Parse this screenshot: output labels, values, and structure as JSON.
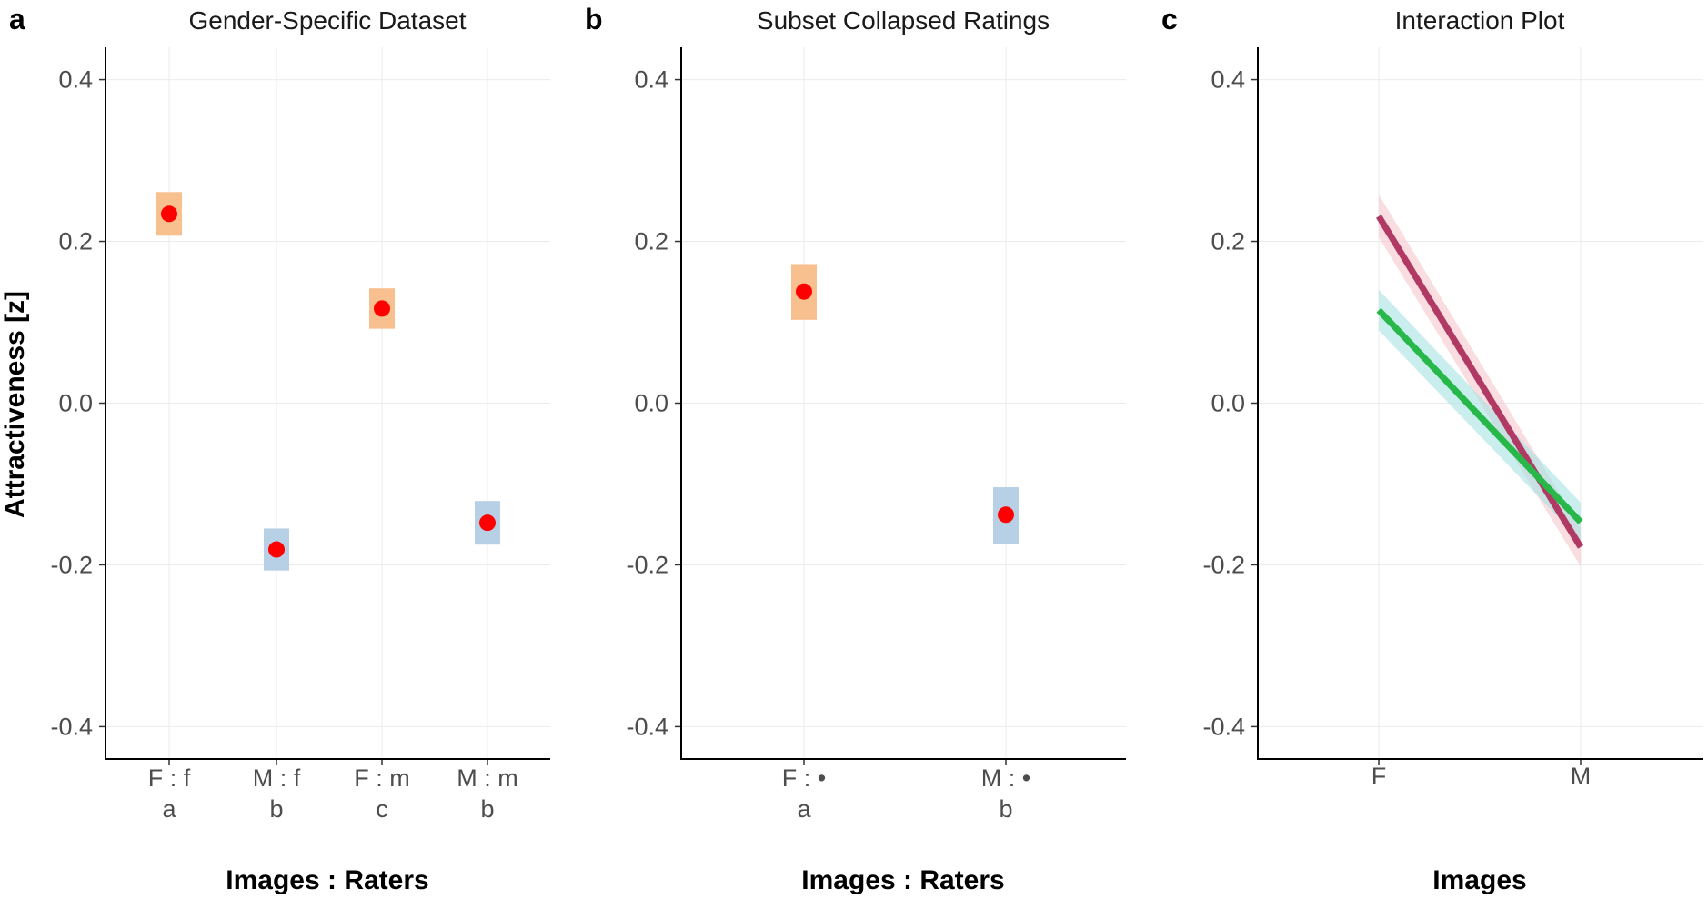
{
  "y_axis_label": "Attractiveness [z]",
  "chart_data": [
    {
      "id": "a",
      "type": "scatter",
      "panel_letter": "a",
      "title": "Gender-Specific Dataset",
      "xlabel": "Images : Raters",
      "ylabel": "Attractiveness [z]",
      "ylim": [
        -0.44,
        0.44
      ],
      "yticks": [
        0.4,
        0.2,
        0.0,
        -0.2,
        -0.4
      ],
      "ytick_labels": [
        "0.4",
        "0.2",
        "0.0",
        "-0.2",
        "-0.4"
      ],
      "grid": true,
      "categories": [
        "F : f",
        "M : f",
        "F : m",
        "M : m"
      ],
      "group_letters": [
        "a",
        "b",
        "c",
        "b"
      ],
      "values": [
        0.234,
        -0.181,
        0.117,
        -0.148
      ],
      "ci_low": [
        0.207,
        -0.207,
        0.092,
        -0.175
      ],
      "ci_high": [
        0.261,
        -0.155,
        0.142,
        -0.121
      ],
      "ci_colors": [
        "#f9c08f",
        "#b7d0e5",
        "#f9c08f",
        "#b7d0e5"
      ],
      "point_color": "#ff0000"
    },
    {
      "id": "b",
      "type": "scatter",
      "panel_letter": "b",
      "title": "Subset Collapsed Ratings",
      "xlabel": "Images : Raters",
      "ylabel": "",
      "ylim": [
        -0.44,
        0.44
      ],
      "yticks": [
        0.4,
        0.2,
        0.0,
        -0.2,
        -0.4
      ],
      "ytick_labels": [
        "0.4",
        "0.2",
        "0.0",
        "-0.2",
        "-0.4"
      ],
      "grid": true,
      "categories": [
        "F : •",
        "M : •"
      ],
      "group_letters": [
        "a",
        "b"
      ],
      "values": [
        0.138,
        -0.138
      ],
      "ci_low": [
        0.103,
        -0.174
      ],
      "ci_high": [
        0.172,
        -0.104
      ],
      "ci_colors": [
        "#f9c08f",
        "#b7d0e5"
      ],
      "point_color": "#ff0000"
    },
    {
      "id": "c",
      "type": "line",
      "panel_letter": "c",
      "title": "Interaction Plot",
      "xlabel": "Images",
      "ylabel": "",
      "ylim": [
        -0.44,
        0.44
      ],
      "yticks": [
        0.4,
        0.2,
        0.0,
        -0.2,
        -0.4
      ],
      "ytick_labels": [
        "0.4",
        "0.2",
        "0.0",
        "-0.2",
        "-0.4"
      ],
      "grid": true,
      "categories": [
        "F",
        "M"
      ],
      "series": [
        {
          "values": [
            0.231,
            -0.178
          ],
          "ci_low": [
            0.205,
            -0.202
          ],
          "ci_high": [
            0.258,
            -0.155
          ],
          "color": "#b03a64",
          "band_color": "#f7c6cc"
        },
        {
          "values": [
            0.115,
            -0.147
          ],
          "ci_low": [
            0.09,
            -0.17
          ],
          "ci_high": [
            0.14,
            -0.123
          ],
          "color": "#28b84a",
          "band_color": "#a6e3e3"
        }
      ]
    }
  ]
}
